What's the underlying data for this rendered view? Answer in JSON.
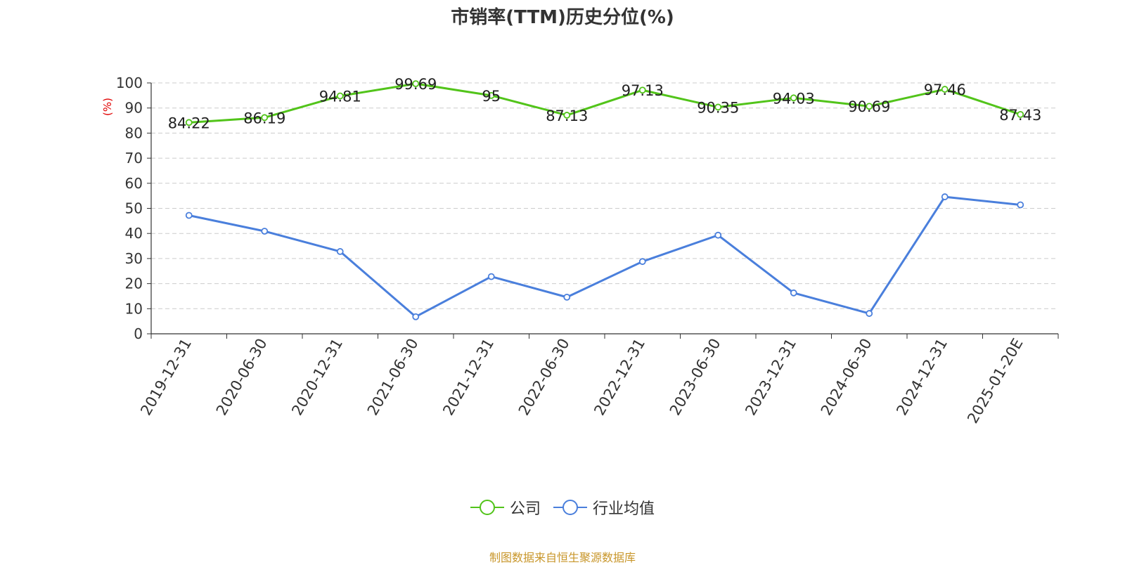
{
  "chart_data": {
    "type": "line",
    "title": "市销率(TTM)历史分位(%)",
    "ylabel": "(%)",
    "xlabel": "",
    "ylim": [
      0,
      100
    ],
    "yticks": [
      0,
      10,
      20,
      30,
      40,
      50,
      60,
      70,
      80,
      90,
      100
    ],
    "grid": true,
    "legend_position": "bottom",
    "categories": [
      "2019-12-31",
      "2020-06-30",
      "2020-12-31",
      "2021-06-30",
      "2021-12-31",
      "2022-06-30",
      "2022-12-31",
      "2023-06-30",
      "2023-12-31",
      "2024-06-30",
      "2024-12-31",
      "2025-01-20E"
    ],
    "series": [
      {
        "name": "公司",
        "color": "#52c41a",
        "show_labels": true,
        "values": [
          84.22,
          86.19,
          94.81,
          99.69,
          95,
          87.13,
          97.13,
          90.35,
          94.03,
          90.69,
          97.46,
          87.43
        ]
      },
      {
        "name": "行业均值",
        "color": "#4a7fdc",
        "show_labels": false,
        "values": [
          47.2,
          40.9,
          32.8,
          6.8,
          22.8,
          14.6,
          28.8,
          39.3,
          16.3,
          8.1,
          54.6,
          51.4
        ]
      }
    ]
  },
  "source": "制图数据来自恒生聚源数据库"
}
